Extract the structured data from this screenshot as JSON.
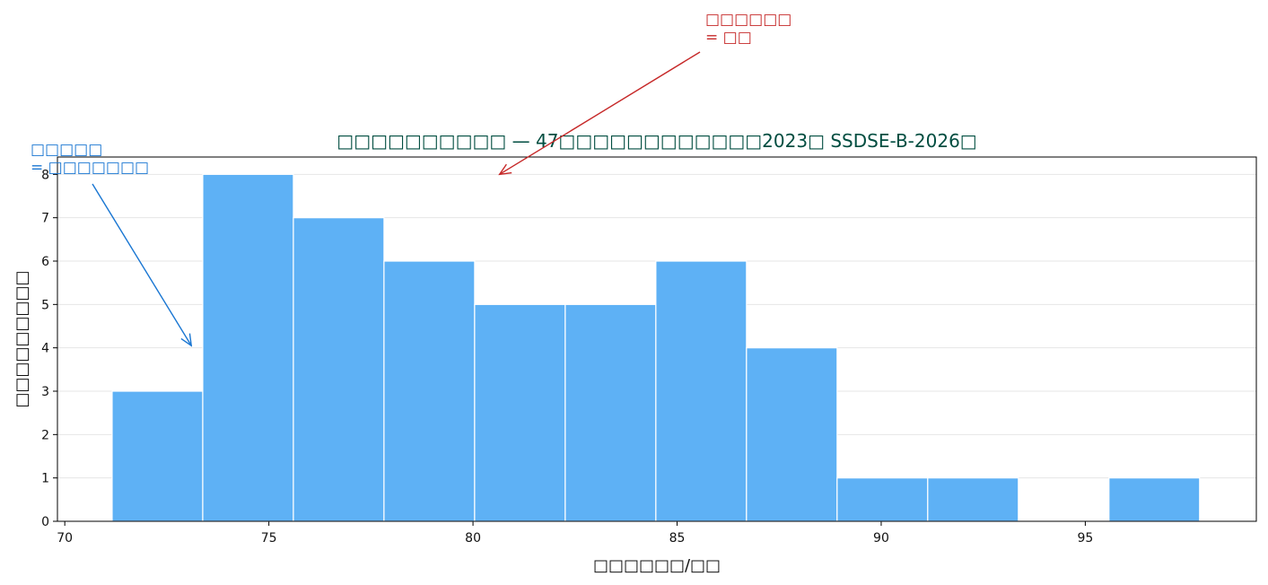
{
  "chart_data": {
    "type": "histogram",
    "title": "□□□□□□□□□□ — 47□□□□□□□□□□□□2023□ SSDSE-B-2026□",
    "x_label": "□□□□□□/□□",
    "y_label": "□□□□□□□□□",
    "bins": [
      71.16,
      73.38,
      75.6,
      77.82,
      80.04,
      82.26,
      84.48,
      86.7,
      88.92,
      91.14,
      93.36,
      95.58,
      97.8
    ],
    "values": [
      3,
      8,
      7,
      6,
      5,
      5,
      6,
      4,
      1,
      1,
      0,
      1
    ],
    "color": "#5eb1f5",
    "xlim": [
      69.82,
      99.19
    ],
    "ylim": [
      0,
      8.4
    ],
    "xticks": [
      70,
      75,
      80,
      85,
      90,
      95
    ],
    "yticks": [
      0,
      1,
      2,
      3,
      4,
      5,
      6,
      7,
      8
    ],
    "grid": true,
    "annotations": [
      {
        "lines": [
          "□□□□□□",
          "= □□"
        ],
        "xy": [
          80.65,
          8.0
        ],
        "color": "#c62828"
      },
      {
        "lines": [
          "□□□□□",
          "= □□□□□□□"
        ],
        "xy": [
          73.1,
          4.05
        ],
        "color": "#1976d2"
      }
    ]
  }
}
